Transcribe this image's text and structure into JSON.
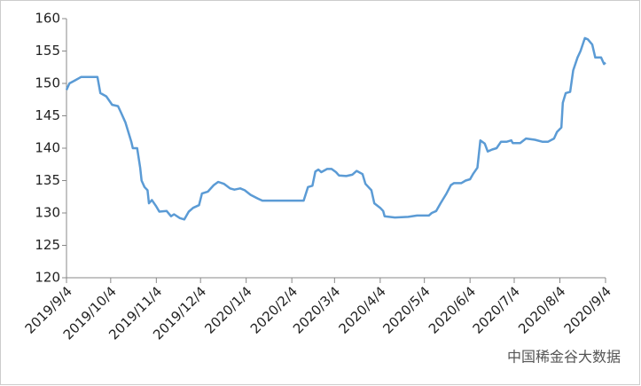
{
  "chart_data": {
    "type": "line",
    "x": [
      "2019-09-04",
      "2019-09-06",
      "2019-09-10",
      "2019-09-14",
      "2019-09-25",
      "2019-09-27",
      "2019-10-01",
      "2019-10-05",
      "2019-10-09",
      "2019-10-11",
      "2019-10-14",
      "2019-10-18",
      "2019-10-19",
      "2019-10-22",
      "2019-10-24",
      "2019-10-25",
      "2019-10-27",
      "2019-10-29",
      "2019-10-30",
      "2019-11-01",
      "2019-11-04",
      "2019-11-06",
      "2019-11-11",
      "2019-11-14",
      "2019-11-16",
      "2019-11-20",
      "2019-11-23",
      "2019-11-26",
      "2019-11-29",
      "2019-12-03",
      "2019-12-05",
      "2019-12-09",
      "2019-12-13",
      "2019-12-16",
      "2019-12-20",
      "2019-12-24",
      "2019-12-27",
      "2019-12-31",
      "2020-01-03",
      "2020-01-07",
      "2020-01-12",
      "2020-01-15",
      "2020-02-12",
      "2020-02-15",
      "2020-02-18",
      "2020-02-20",
      "2020-02-22",
      "2020-02-24",
      "2020-02-28",
      "2020-03-02",
      "2020-03-05",
      "2020-03-07",
      "2020-03-12",
      "2020-03-16",
      "2020-03-19",
      "2020-03-23",
      "2020-03-25",
      "2020-03-29",
      "2020-03-31",
      "2020-04-04",
      "2020-04-06",
      "2020-04-07",
      "2020-04-14",
      "2020-04-23",
      "2020-04-29",
      "2020-05-07",
      "2020-05-09",
      "2020-05-12",
      "2020-05-15",
      "2020-05-19",
      "2020-05-22",
      "2020-05-24",
      "2020-05-29",
      "2020-06-01",
      "2020-06-04",
      "2020-06-06",
      "2020-06-09",
      "2020-06-11",
      "2020-06-14",
      "2020-06-16",
      "2020-06-19",
      "2020-06-22",
      "2020-06-25",
      "2020-06-29",
      "2020-07-02",
      "2020-07-03",
      "2020-07-08",
      "2020-07-12",
      "2020-07-18",
      "2020-07-23",
      "2020-07-27",
      "2020-07-31",
      "2020-08-02",
      "2020-08-05",
      "2020-08-06",
      "2020-08-08",
      "2020-08-11",
      "2020-08-13",
      "2020-08-16",
      "2020-08-18",
      "2020-08-21",
      "2020-08-23",
      "2020-08-26",
      "2020-08-28",
      "2020-09-01",
      "2020-09-03",
      "2020-09-04"
    ],
    "series": [
      {
        "color": "#5b9bd5",
        "values": [
          149,
          150,
          150.5,
          151,
          151,
          148.5,
          148,
          146.7,
          146.5,
          145.5,
          144,
          141,
          140,
          140,
          137,
          135,
          134,
          133.5,
          131.5,
          132,
          131,
          130.2,
          130.3,
          129.5,
          129.8,
          129.2,
          129,
          130.2,
          130.8,
          131.2,
          133,
          133.3,
          134.3,
          134.8,
          134.5,
          133.8,
          133.6,
          133.8,
          133.5,
          132.8,
          132.2,
          131.9,
          131.9,
          134,
          134.2,
          136.4,
          136.7,
          136.3,
          136.8,
          136.8,
          136.3,
          135.8,
          135.7,
          135.9,
          136.5,
          136,
          134.5,
          133.5,
          131.5,
          130.8,
          130.3,
          129.5,
          129.3,
          129.4,
          129.6,
          129.6,
          130,
          130.3,
          131.5,
          133,
          134.3,
          134.6,
          134.6,
          135,
          135.2,
          136,
          137,
          141.2,
          140.7,
          139.5,
          139.8,
          140,
          141,
          141,
          141.2,
          140.8,
          140.8,
          141.5,
          141.3,
          141,
          141,
          141.5,
          142.5,
          143.2,
          147,
          148.5,
          148.7,
          152,
          154,
          155,
          157,
          156.8,
          156,
          154,
          154,
          153,
          153.2
        ]
      }
    ],
    "xlim": [
      "2019-09-04",
      "2020-09-04"
    ],
    "xticks": [
      {
        "value": "2019-09-04",
        "label": "2019/9/4"
      },
      {
        "value": "2019-10-04",
        "label": "2019/10/4"
      },
      {
        "value": "2019-11-04",
        "label": "2019/11/4"
      },
      {
        "value": "2019-12-04",
        "label": "2019/12/4"
      },
      {
        "value": "2020-01-04",
        "label": "2020/1/4"
      },
      {
        "value": "2020-02-04",
        "label": "2020/2/4"
      },
      {
        "value": "2020-03-04",
        "label": "2020/3/4"
      },
      {
        "value": "2020-04-04",
        "label": "2020/4/4"
      },
      {
        "value": "2020-05-04",
        "label": "2020/5/4"
      },
      {
        "value": "2020-06-04",
        "label": "2020/6/4"
      },
      {
        "value": "2020-07-04",
        "label": "2020/7/4"
      },
      {
        "value": "2020-08-04",
        "label": "2020/8/4"
      },
      {
        "value": "2020-09-04",
        "label": "2020/9/4"
      }
    ],
    "ylim": [
      120,
      160
    ],
    "yticks": [
      120,
      125,
      130,
      135,
      140,
      145,
      150,
      155,
      160
    ],
    "watermark": "中国稀金谷大数据"
  }
}
